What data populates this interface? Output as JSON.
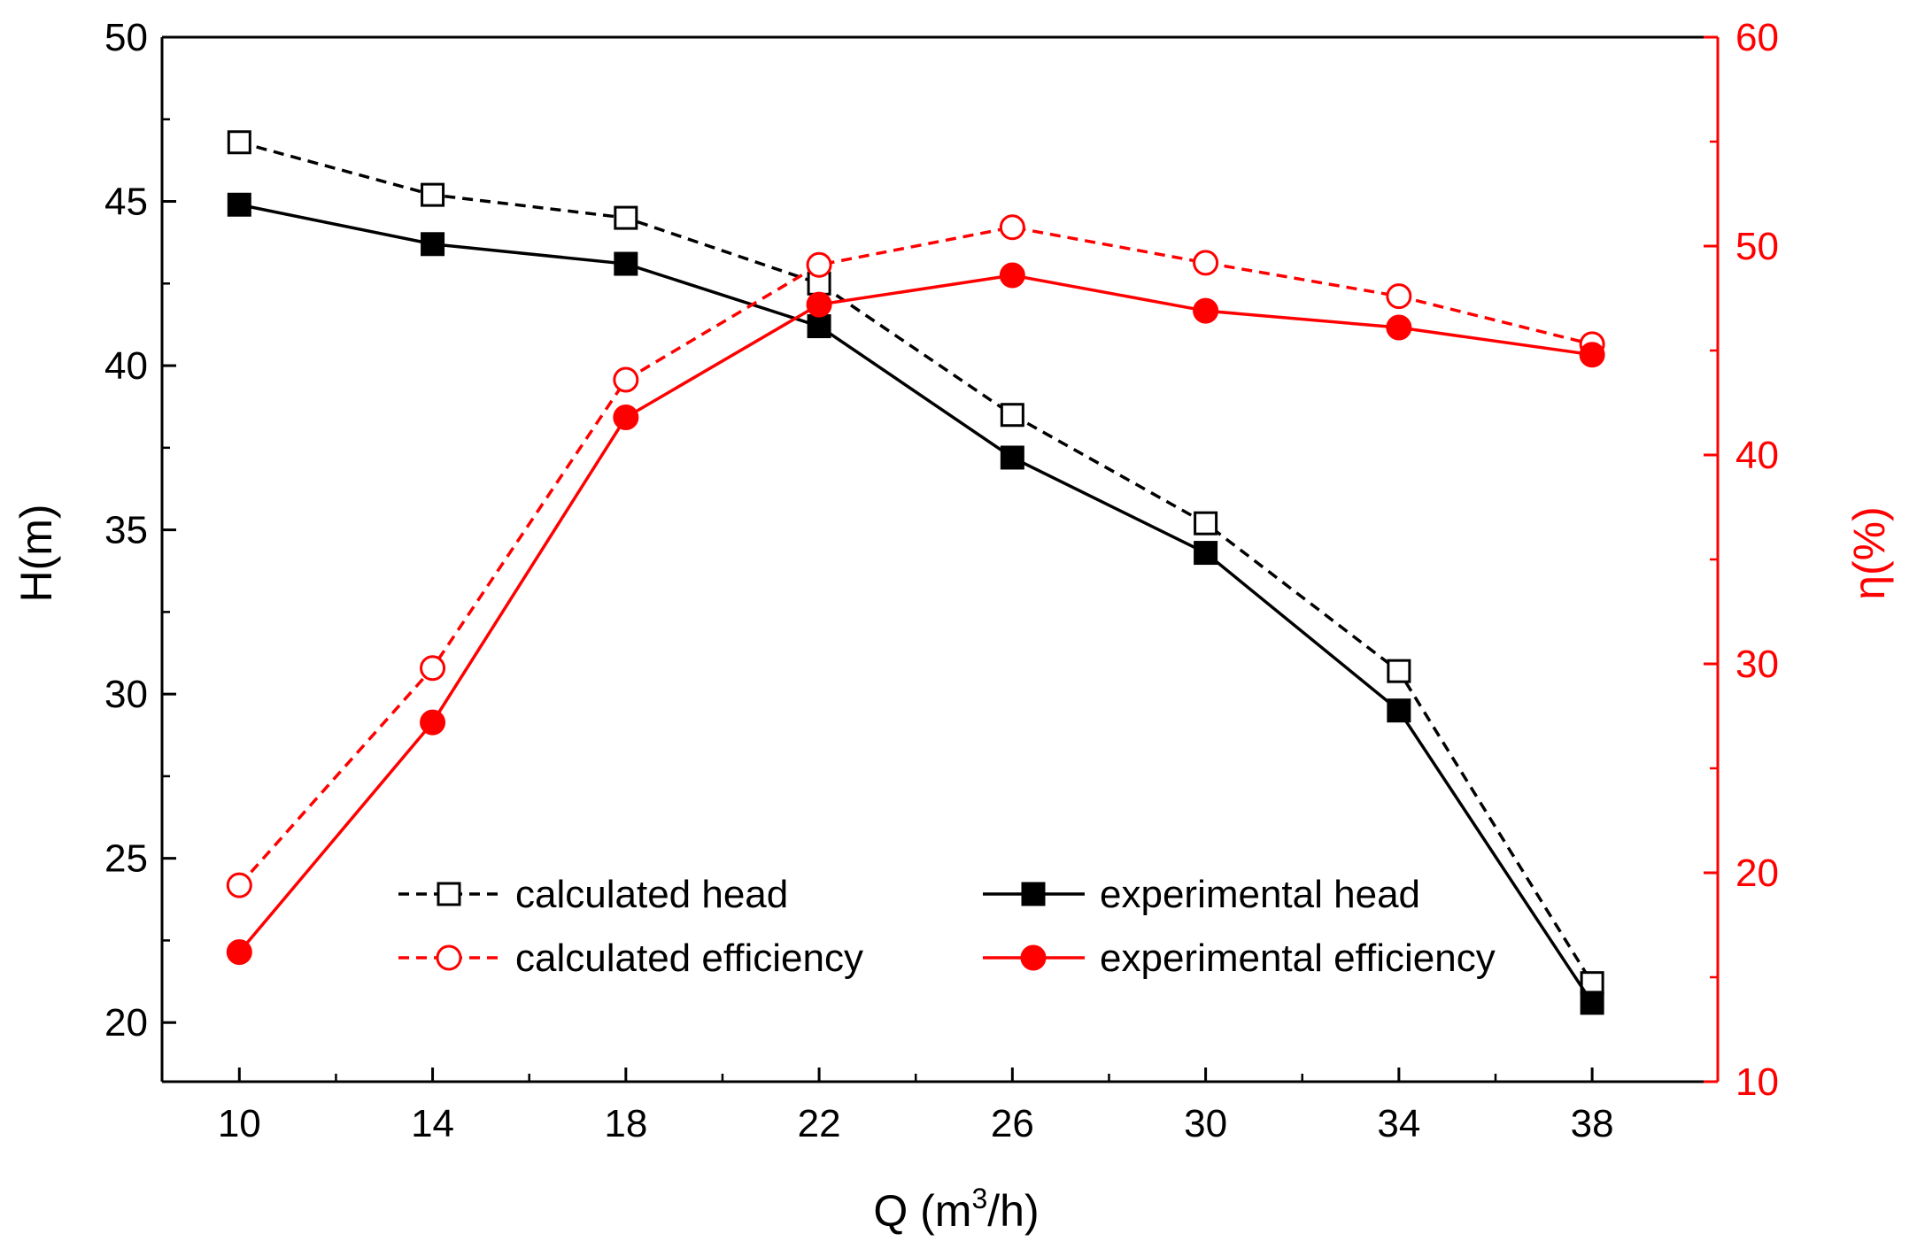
{
  "chart_data": {
    "type": "line",
    "title": "",
    "xlabel": "Q (m³/h)",
    "xlabel_parts": {
      "main": "Q (m",
      "sup": "3",
      "tail": "/h)"
    },
    "ylabel": "H(m)",
    "y2label": "η(%)",
    "xlim": [
      8.4,
      40.6
    ],
    "ylim": [
      18.2,
      50
    ],
    "y2lim": [
      10,
      60
    ],
    "x_ticks": [
      10,
      14,
      18,
      22,
      26,
      30,
      34,
      38
    ],
    "x_minor_ticks": [
      12,
      16,
      20,
      24,
      28,
      32,
      36
    ],
    "y_ticks": [
      20,
      25,
      30,
      35,
      40,
      45,
      50
    ],
    "y2_ticks": [
      10,
      20,
      30,
      40,
      50,
      60
    ],
    "grid": false,
    "legend_position": "bottom-center",
    "x": [
      10,
      14,
      18,
      22,
      26,
      30,
      34,
      38
    ],
    "series": [
      {
        "name": "calculated head",
        "axis": "left",
        "color": "#000000",
        "dashed": true,
        "marker": "square-open",
        "values": [
          46.8,
          45.2,
          44.5,
          42.5,
          38.5,
          35.2,
          30.7,
          21.2
        ]
      },
      {
        "name": "experimental head",
        "axis": "left",
        "color": "#000000",
        "dashed": false,
        "marker": "square-filled",
        "values": [
          44.9,
          43.7,
          43.1,
          41.2,
          37.2,
          34.3,
          29.5,
          20.6
        ]
      },
      {
        "name": "calculated efficiency",
        "axis": "right",
        "color": "#ff0000",
        "dashed": true,
        "marker": "circle-open",
        "values": [
          19.4,
          29.8,
          43.6,
          49.1,
          50.9,
          49.2,
          47.6,
          45.3
        ]
      },
      {
        "name": "experimental efficiency",
        "axis": "right",
        "color": "#ff0000",
        "dashed": false,
        "marker": "circle-filled",
        "values": [
          16.2,
          27.2,
          41.8,
          47.2,
          48.6,
          46.9,
          46.1,
          44.8
        ]
      }
    ]
  }
}
